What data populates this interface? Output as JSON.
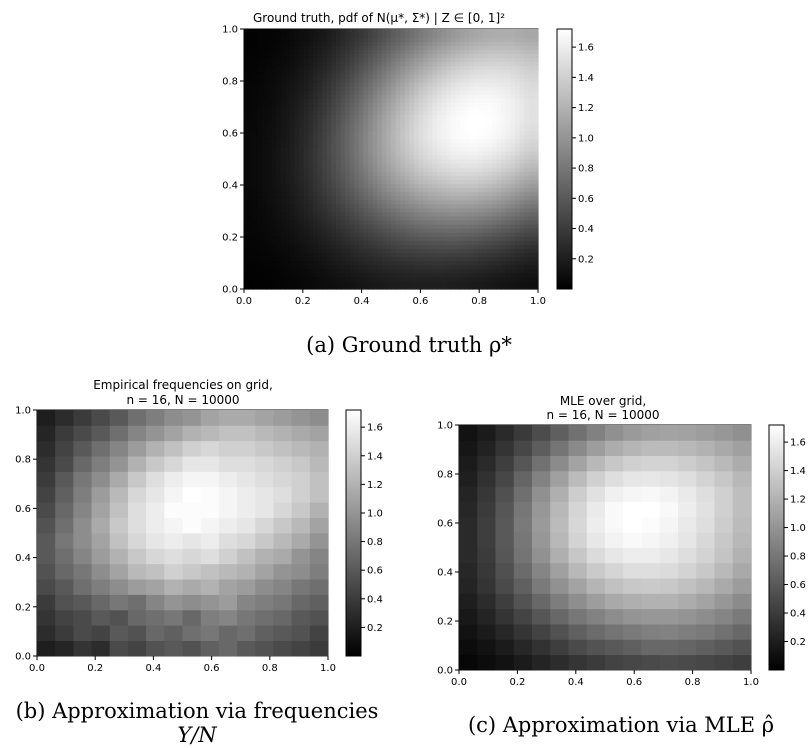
{
  "figure": {
    "caption_a": "(a) Ground truth ρ*",
    "caption_b_line1": "(b) Approximation via frequencies",
    "caption_b_line2": "Y/N",
    "caption_c": "(c) Approximation via MLE ρ̂"
  },
  "chart_data": [
    {
      "type": "heatmap",
      "title": "Ground truth, pdf of N(μ*, Σ*) | Z ∈ [0, 1]²",
      "xlim": [
        0,
        1
      ],
      "ylim": [
        0,
        1
      ],
      "x_ticks": [
        "0.0",
        "0.2",
        "0.4",
        "0.6",
        "0.8",
        "1.0"
      ],
      "y_ticks": [
        "0.0",
        "0.2",
        "0.4",
        "0.6",
        "0.8",
        "1.0"
      ],
      "colorbar_range": [
        0.0,
        1.72
      ],
      "colorbar_ticks": [
        "0.2",
        "0.4",
        "0.6",
        "0.8",
        "1.0",
        "1.2",
        "1.4",
        "1.6"
      ],
      "colormap": "gray",
      "grid_size": 16,
      "values": [
        [
          0.01,
          0.02,
          0.04,
          0.06,
          0.09,
          0.12,
          0.15,
          0.18,
          0.2,
          0.21,
          0.21,
          0.2,
          0.18,
          0.16,
          0.13,
          0.11
        ],
        [
          0.02,
          0.03,
          0.06,
          0.09,
          0.13,
          0.18,
          0.23,
          0.27,
          0.3,
          0.32,
          0.33,
          0.32,
          0.3,
          0.27,
          0.23,
          0.19
        ],
        [
          0.03,
          0.05,
          0.08,
          0.13,
          0.19,
          0.25,
          0.32,
          0.38,
          0.44,
          0.47,
          0.49,
          0.49,
          0.46,
          0.42,
          0.37,
          0.31
        ],
        [
          0.04,
          0.07,
          0.11,
          0.17,
          0.25,
          0.34,
          0.43,
          0.51,
          0.59,
          0.65,
          0.68,
          0.69,
          0.67,
          0.62,
          0.55,
          0.48
        ],
        [
          0.05,
          0.08,
          0.14,
          0.22,
          0.32,
          0.43,
          0.55,
          0.66,
          0.76,
          0.84,
          0.89,
          0.91,
          0.89,
          0.84,
          0.76,
          0.67
        ],
        [
          0.05,
          0.1,
          0.16,
          0.26,
          0.38,
          0.52,
          0.66,
          0.81,
          0.93,
          1.03,
          1.1,
          1.13,
          1.12,
          1.07,
          0.98,
          0.87
        ],
        [
          0.06,
          0.11,
          0.18,
          0.29,
          0.43,
          0.59,
          0.76,
          0.93,
          1.08,
          1.21,
          1.29,
          1.34,
          1.34,
          1.29,
          1.19,
          1.07
        ],
        [
          0.06,
          0.11,
          0.19,
          0.31,
          0.46,
          0.64,
          0.83,
          1.03,
          1.2,
          1.35,
          1.45,
          1.51,
          1.52,
          1.47,
          1.38,
          1.25
        ],
        [
          0.06,
          0.11,
          0.19,
          0.31,
          0.47,
          0.66,
          0.87,
          1.08,
          1.28,
          1.44,
          1.56,
          1.63,
          1.65,
          1.61,
          1.52,
          1.39
        ],
        [
          0.06,
          0.1,
          0.18,
          0.3,
          0.46,
          0.66,
          0.87,
          1.09,
          1.3,
          1.48,
          1.61,
          1.69,
          1.72,
          1.69,
          1.61,
          1.48
        ],
        [
          0.05,
          0.09,
          0.17,
          0.28,
          0.43,
          0.62,
          0.83,
          1.06,
          1.27,
          1.46,
          1.6,
          1.69,
          1.73,
          1.71,
          1.64,
          1.52
        ],
        [
          0.04,
          0.08,
          0.15,
          0.25,
          0.39,
          0.57,
          0.77,
          0.99,
          1.2,
          1.39,
          1.54,
          1.64,
          1.69,
          1.69,
          1.63,
          1.52
        ],
        [
          0.04,
          0.07,
          0.13,
          0.21,
          0.34,
          0.5,
          0.69,
          0.89,
          1.09,
          1.28,
          1.43,
          1.54,
          1.6,
          1.61,
          1.57,
          1.48
        ],
        [
          0.03,
          0.06,
          0.1,
          0.18,
          0.28,
          0.42,
          0.59,
          0.77,
          0.96,
          1.13,
          1.28,
          1.4,
          1.47,
          1.49,
          1.47,
          1.4
        ],
        [
          0.02,
          0.04,
          0.08,
          0.14,
          0.23,
          0.35,
          0.49,
          0.65,
          0.81,
          0.97,
          1.11,
          1.22,
          1.3,
          1.34,
          1.33,
          1.28
        ],
        [
          0.02,
          0.03,
          0.06,
          0.11,
          0.18,
          0.28,
          0.39,
          0.53,
          0.67,
          0.81,
          0.93,
          1.04,
          1.12,
          1.16,
          1.17,
          1.13
        ]
      ]
    },
    {
      "type": "heatmap",
      "title": "Empirical frequencies on grid,",
      "subtitle": "n = 16, N = 10000",
      "xlim": [
        0,
        1
      ],
      "ylim": [
        0,
        1
      ],
      "x_ticks": [
        "0.0",
        "0.2",
        "0.4",
        "0.6",
        "0.8",
        "1.0"
      ],
      "y_ticks": [
        "0.0",
        "0.2",
        "0.4",
        "0.6",
        "0.8",
        "1.0"
      ],
      "colorbar_range": [
        0.0,
        1.72
      ],
      "colorbar_ticks": [
        "0.2",
        "0.4",
        "0.6",
        "0.8",
        "1.0",
        "1.2",
        "1.4",
        "1.6"
      ],
      "colormap": "gray",
      "grid_size": 16,
      "values": [
        [
          0.2,
          0.25,
          0.35,
          0.3,
          0.5,
          0.45,
          0.55,
          0.6,
          0.55,
          0.65,
          0.7,
          0.6,
          0.55,
          0.5,
          0.45,
          0.4
        ],
        [
          0.3,
          0.4,
          0.5,
          0.45,
          0.6,
          0.55,
          0.7,
          0.65,
          0.75,
          0.8,
          0.7,
          0.75,
          0.65,
          0.6,
          0.55,
          0.45
        ],
        [
          0.35,
          0.45,
          0.5,
          0.6,
          0.55,
          0.7,
          0.75,
          0.8,
          0.7,
          0.85,
          0.9,
          0.8,
          0.75,
          0.7,
          0.6,
          0.55
        ],
        [
          0.4,
          0.55,
          0.6,
          0.7,
          0.8,
          0.75,
          0.9,
          1.0,
          0.95,
          1.0,
          1.05,
          0.9,
          0.85,
          0.8,
          0.7,
          0.65
        ],
        [
          0.5,
          0.6,
          0.75,
          0.85,
          0.95,
          1.05,
          1.1,
          1.2,
          1.15,
          1.2,
          1.1,
          1.05,
          0.95,
          0.9,
          0.8,
          0.75
        ],
        [
          0.55,
          0.7,
          0.8,
          0.95,
          1.1,
          1.25,
          1.3,
          1.4,
          1.35,
          1.3,
          1.25,
          1.2,
          1.1,
          1.0,
          0.95,
          0.85
        ],
        [
          0.6,
          0.75,
          0.9,
          1.05,
          1.2,
          1.35,
          1.45,
          1.5,
          1.45,
          1.5,
          1.4,
          1.3,
          1.2,
          1.15,
          1.0,
          0.9
        ],
        [
          0.6,
          0.8,
          0.95,
          1.1,
          1.3,
          1.45,
          1.55,
          1.6,
          1.55,
          1.6,
          1.5,
          1.45,
          1.35,
          1.25,
          1.15,
          1.0
        ],
        [
          0.55,
          0.75,
          0.95,
          1.15,
          1.35,
          1.5,
          1.6,
          1.65,
          1.7,
          1.65,
          1.6,
          1.55,
          1.45,
          1.35,
          1.25,
          1.1
        ],
        [
          0.5,
          0.7,
          0.9,
          1.1,
          1.3,
          1.5,
          1.6,
          1.7,
          1.7,
          1.7,
          1.65,
          1.6,
          1.55,
          1.45,
          1.35,
          1.2
        ],
        [
          0.45,
          0.65,
          0.85,
          1.05,
          1.25,
          1.45,
          1.55,
          1.65,
          1.72,
          1.7,
          1.65,
          1.6,
          1.55,
          1.5,
          1.4,
          1.3
        ],
        [
          0.4,
          0.6,
          0.8,
          0.95,
          1.15,
          1.35,
          1.5,
          1.6,
          1.65,
          1.65,
          1.6,
          1.55,
          1.5,
          1.45,
          1.4,
          1.3
        ],
        [
          0.35,
          0.5,
          0.7,
          0.85,
          1.0,
          1.2,
          1.35,
          1.45,
          1.55,
          1.55,
          1.5,
          1.5,
          1.45,
          1.4,
          1.35,
          1.25
        ],
        [
          0.3,
          0.45,
          0.6,
          0.75,
          0.9,
          1.05,
          1.2,
          1.3,
          1.4,
          1.45,
          1.4,
          1.4,
          1.35,
          1.3,
          1.25,
          1.2
        ],
        [
          0.25,
          0.4,
          0.5,
          0.6,
          0.75,
          0.9,
          1.0,
          1.1,
          1.2,
          1.25,
          1.3,
          1.3,
          1.25,
          1.2,
          1.15,
          1.1
        ],
        [
          0.2,
          0.3,
          0.4,
          0.5,
          0.6,
          0.75,
          0.85,
          0.95,
          1.0,
          1.1,
          1.15,
          1.15,
          1.1,
          1.05,
          1.0,
          0.95
        ]
      ]
    },
    {
      "type": "heatmap",
      "title": "MLE over grid,",
      "subtitle": "n = 16, N = 10000",
      "xlim": [
        0,
        1
      ],
      "ylim": [
        0,
        1
      ],
      "x_ticks": [
        "0.0",
        "0.2",
        "0.4",
        "0.6",
        "0.8",
        "1.0"
      ],
      "y_ticks": [
        "0.0",
        "0.2",
        "0.4",
        "0.6",
        "0.8",
        "1.0"
      ],
      "colorbar_range": [
        0.0,
        1.72
      ],
      "colorbar_ticks": [
        "0.2",
        "0.4",
        "0.6",
        "0.8",
        "1.0",
        "1.2",
        "1.4",
        "1.6"
      ],
      "colormap": "gray",
      "grid_size": 16,
      "values": [
        [
          0.05,
          0.08,
          0.12,
          0.18,
          0.24,
          0.3,
          0.36,
          0.4,
          0.45,
          0.48,
          0.5,
          0.52,
          0.5,
          0.48,
          0.45,
          0.42
        ],
        [
          0.08,
          0.12,
          0.18,
          0.26,
          0.34,
          0.42,
          0.5,
          0.56,
          0.6,
          0.65,
          0.7,
          0.7,
          0.68,
          0.65,
          0.6,
          0.55
        ],
        [
          0.12,
          0.18,
          0.26,
          0.36,
          0.45,
          0.55,
          0.65,
          0.72,
          0.78,
          0.82,
          0.86,
          0.88,
          0.85,
          0.82,
          0.76,
          0.7
        ],
        [
          0.16,
          0.24,
          0.35,
          0.46,
          0.58,
          0.7,
          0.8,
          0.88,
          0.95,
          1.0,
          1.02,
          1.02,
          1.0,
          0.95,
          0.9,
          0.82
        ],
        [
          0.2,
          0.3,
          0.42,
          0.56,
          0.7,
          0.84,
          0.96,
          1.06,
          1.14,
          1.18,
          1.2,
          1.2,
          1.16,
          1.1,
          1.02,
          0.94
        ],
        [
          0.24,
          0.35,
          0.5,
          0.65,
          0.82,
          0.98,
          1.1,
          1.22,
          1.3,
          1.35,
          1.36,
          1.35,
          1.3,
          1.24,
          1.15,
          1.05
        ],
        [
          0.26,
          0.38,
          0.54,
          0.72,
          0.9,
          1.08,
          1.24,
          1.36,
          1.44,
          1.5,
          1.5,
          1.48,
          1.42,
          1.35,
          1.25,
          1.14
        ],
        [
          0.28,
          0.4,
          0.58,
          0.78,
          0.98,
          1.18,
          1.34,
          1.48,
          1.56,
          1.6,
          1.6,
          1.56,
          1.5,
          1.42,
          1.32,
          1.2
        ],
        [
          0.28,
          0.42,
          0.6,
          0.8,
          1.02,
          1.24,
          1.42,
          1.56,
          1.64,
          1.68,
          1.66,
          1.62,
          1.55,
          1.46,
          1.35,
          1.24
        ],
        [
          0.28,
          0.42,
          0.6,
          0.82,
          1.04,
          1.26,
          1.45,
          1.6,
          1.68,
          1.72,
          1.7,
          1.65,
          1.58,
          1.5,
          1.38,
          1.26
        ],
        [
          0.26,
          0.4,
          0.58,
          0.8,
          1.02,
          1.24,
          1.44,
          1.58,
          1.68,
          1.72,
          1.72,
          1.68,
          1.6,
          1.52,
          1.4,
          1.28
        ],
        [
          0.24,
          0.37,
          0.54,
          0.75,
          0.97,
          1.18,
          1.38,
          1.52,
          1.62,
          1.66,
          1.67,
          1.64,
          1.58,
          1.5,
          1.4,
          1.28
        ],
        [
          0.21,
          0.33,
          0.48,
          0.68,
          0.88,
          1.08,
          1.26,
          1.4,
          1.5,
          1.55,
          1.56,
          1.54,
          1.5,
          1.42,
          1.34,
          1.24
        ],
        [
          0.18,
          0.28,
          0.42,
          0.58,
          0.76,
          0.94,
          1.1,
          1.24,
          1.34,
          1.4,
          1.42,
          1.42,
          1.38,
          1.32,
          1.25,
          1.16
        ],
        [
          0.15,
          0.23,
          0.35,
          0.48,
          0.63,
          0.79,
          0.93,
          1.06,
          1.16,
          1.22,
          1.26,
          1.26,
          1.24,
          1.2,
          1.14,
          1.08
        ],
        [
          0.12,
          0.18,
          0.28,
          0.39,
          0.51,
          0.64,
          0.76,
          0.87,
          0.97,
          1.04,
          1.08,
          1.1,
          1.09,
          1.06,
          1.02,
          0.97
        ]
      ]
    }
  ]
}
